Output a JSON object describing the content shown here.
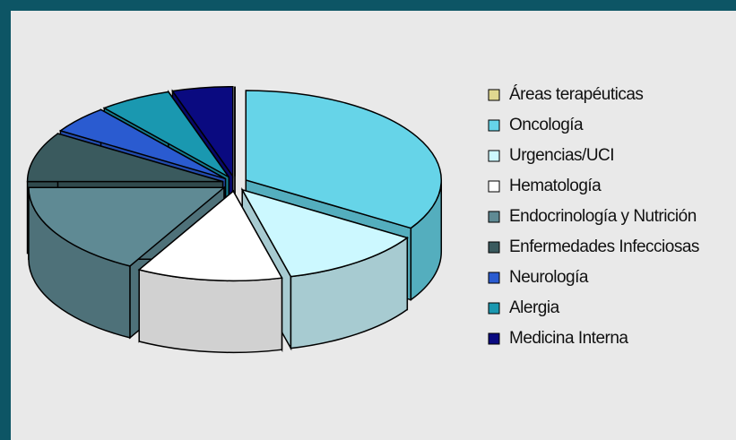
{
  "chart_data": {
    "type": "pie3d",
    "categories": [
      "Áreas terapéuticas",
      "Oncología",
      "Urgencias/UCI",
      "Hematología",
      "Endocrinología y Nutrición",
      "Enfermedades Infecciosas",
      "Neurología",
      "Alergia",
      "Medicina Interna"
    ],
    "values": [
      0,
      34,
      12,
      12,
      17,
      9,
      5,
      6,
      5
    ],
    "colors": [
      "#e0d890",
      "#66d4e8",
      "#ccf8ff",
      "#ffffff",
      "#5f8a94",
      "#3a5a5e",
      "#2a5bd0",
      "#1a98b0",
      "#0a0a80"
    ],
    "legend": "right"
  }
}
